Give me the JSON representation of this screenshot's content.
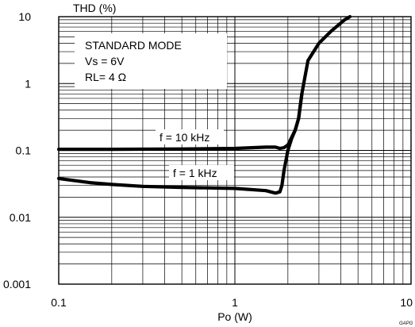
{
  "chart_data": {
    "type": "line",
    "title": "",
    "ylabel": "THD (%)",
    "xlabel": "Po (W)",
    "x_scale": "log",
    "y_scale": "log",
    "xlim": [
      0.1,
      10
    ],
    "ylim": [
      0.001,
      10
    ],
    "grid": true,
    "x_ticks": [
      {
        "value": 0.1,
        "label": "0.1"
      },
      {
        "value": 1,
        "label": "1"
      },
      {
        "value": 10,
        "label": "10"
      }
    ],
    "y_ticks": [
      {
        "value": 10,
        "label": "10"
      },
      {
        "value": 1,
        "label": "1"
      },
      {
        "value": 0.1,
        "label": "0.1"
      },
      {
        "value": 0.01,
        "label": "0.01"
      },
      {
        "value": 0.001,
        "label": "0.001"
      }
    ],
    "conditions": [
      "STANDARD MODE",
      "Vs = 6V",
      "RL= 4 Ω"
    ],
    "watermark": "GAPG",
    "series": [
      {
        "name": "f = 10 kHz",
        "x": [
          0.1,
          0.2,
          0.5,
          1.0,
          1.5,
          1.7,
          1.8,
          1.9,
          2.0,
          2.2,
          2.3,
          2.4,
          2.6,
          3.0,
          3.5,
          4.2,
          4.5
        ],
        "y": [
          0.104,
          0.104,
          0.105,
          0.107,
          0.112,
          0.112,
          0.107,
          0.11,
          0.12,
          0.2,
          0.3,
          0.7,
          2.2,
          4.0,
          6.0,
          9.0,
          10.0
        ]
      },
      {
        "name": "f = 1 kHz",
        "x": [
          0.1,
          0.15,
          0.2,
          0.3,
          0.5,
          1.0,
          1.5,
          1.7,
          1.8,
          1.85,
          1.9,
          2.0,
          2.1,
          2.2,
          2.3,
          2.4
        ],
        "y": [
          0.038,
          0.033,
          0.031,
          0.029,
          0.028,
          0.027,
          0.025,
          0.023,
          0.024,
          0.03,
          0.05,
          0.1,
          0.15,
          0.2,
          0.3,
          0.7
        ]
      }
    ]
  }
}
